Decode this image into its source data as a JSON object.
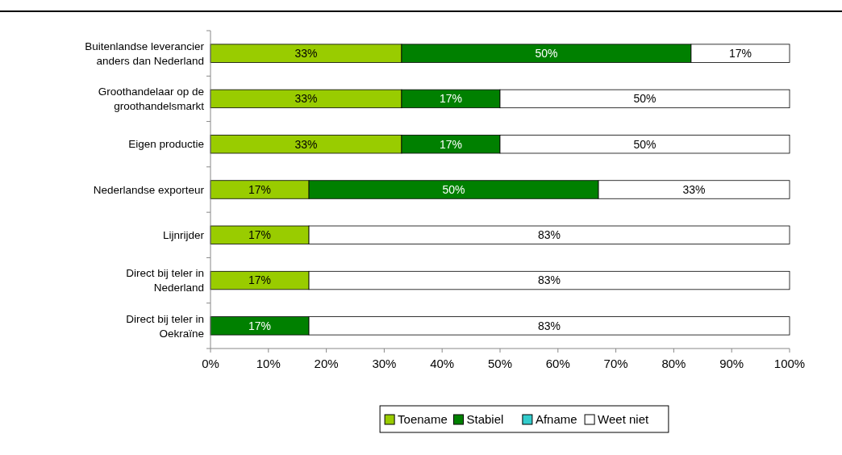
{
  "chart_data": {
    "type": "bar",
    "orientation": "horizontal",
    "stacked": true,
    "categories": [
      "Buitenlandse leverancier anders dan Nederland",
      "Groothandelaar op de groothandelsmarkt",
      "Eigen productie",
      "Nederlandse exporteur",
      "Lijnrijder",
      "Direct bij teler in Nederland",
      "Direct bij teler in Oekraïne"
    ],
    "series": [
      {
        "name": "Toename",
        "color": "#99cc00",
        "values": [
          33,
          33,
          33,
          17,
          17,
          17,
          0
        ],
        "value_labels": [
          "33%",
          "33%",
          "33%",
          "17%",
          "17%",
          "17%",
          null
        ]
      },
      {
        "name": "Stabiel",
        "color": "#008000",
        "values": [
          50,
          17,
          17,
          50,
          0,
          0,
          17
        ],
        "value_labels": [
          "50%",
          "17%",
          "17%",
          "50%",
          null,
          null,
          "17%"
        ]
      },
      {
        "name": "Afname",
        "color": "#33cccc",
        "values": [
          0,
          0,
          0,
          0,
          0,
          0,
          0
        ],
        "value_labels": [
          null,
          null,
          null,
          null,
          null,
          null,
          null
        ]
      },
      {
        "name": "Weet niet",
        "color": "#ffffff",
        "values": [
          17,
          50,
          50,
          33,
          83,
          83,
          83
        ],
        "value_labels": [
          "17%",
          "50%",
          "50%",
          "33%",
          "83%",
          "83%",
          "83%"
        ]
      }
    ],
    "xlim": [
      0,
      100
    ],
    "xticks": [
      {
        "value": 0,
        "label": "0%"
      },
      {
        "value": 10,
        "label": "10%"
      },
      {
        "value": 20,
        "label": "20%"
      },
      {
        "value": 30,
        "label": "30%"
      },
      {
        "value": 40,
        "label": "40%"
      },
      {
        "value": 50,
        "label": "50%"
      },
      {
        "value": 60,
        "label": "60%"
      },
      {
        "value": 70,
        "label": "70%"
      },
      {
        "value": 80,
        "label": "80%"
      },
      {
        "value": 90,
        "label": "90%"
      },
      {
        "value": 100,
        "label": "100%"
      }
    ],
    "grid": false,
    "legend": "bottom"
  }
}
